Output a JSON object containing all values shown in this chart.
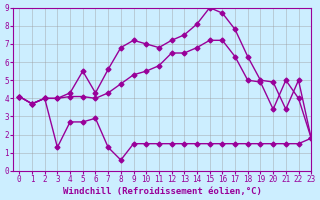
{
  "xlabel": "Windchill (Refroidissement éolien,°C)",
  "background_color": "#cceeff",
  "grid_color": "#999999",
  "line_color": "#990099",
  "xlim": [
    -0.5,
    23
  ],
  "ylim": [
    0,
    9
  ],
  "xticks": [
    0,
    1,
    2,
    3,
    4,
    5,
    6,
    7,
    8,
    9,
    10,
    11,
    12,
    13,
    14,
    15,
    16,
    17,
    18,
    19,
    20,
    21,
    22,
    23
  ],
  "yticks": [
    0,
    1,
    2,
    3,
    4,
    5,
    6,
    7,
    8,
    9
  ],
  "series": [
    {
      "x": [
        0,
        1,
        2,
        3,
        4,
        5,
        6,
        7,
        8,
        9,
        10,
        11,
        12,
        13,
        14,
        15,
        16,
        17,
        18,
        19,
        20,
        21,
        22,
        23
      ],
      "y": [
        4.1,
        3.7,
        4.0,
        4.0,
        4.3,
        5.5,
        4.3,
        5.6,
        6.8,
        7.2,
        7.0,
        6.8,
        7.2,
        7.5,
        8.1,
        9.0,
        8.7,
        7.8,
        6.3,
        5.0,
        4.9,
        3.4,
        5.0,
        1.8
      ]
    },
    {
      "x": [
        0,
        1,
        2,
        3,
        4,
        5,
        6,
        7,
        8,
        9,
        10,
        11,
        12,
        13,
        14,
        15,
        16,
        17,
        18,
        19,
        20,
        21,
        22,
        23
      ],
      "y": [
        4.1,
        3.7,
        4.0,
        4.0,
        4.1,
        4.1,
        4.0,
        4.3,
        4.8,
        5.3,
        5.5,
        5.8,
        6.5,
        6.5,
        6.8,
        7.2,
        7.2,
        6.3,
        5.0,
        4.9,
        3.4,
        5.0,
        4.0,
        1.8
      ]
    },
    {
      "x": [
        0,
        1,
        2,
        3,
        4,
        5,
        6,
        7,
        8,
        9,
        10,
        11,
        12,
        13,
        14,
        15,
        16,
        17,
        18,
        19,
        20,
        21,
        22,
        23
      ],
      "y": [
        4.1,
        3.7,
        4.0,
        1.3,
        2.7,
        2.7,
        2.9,
        1.3,
        0.6,
        1.5,
        1.5,
        1.5,
        1.5,
        1.5,
        1.5,
        1.5,
        1.5,
        1.5,
        1.5,
        1.5,
        1.5,
        1.5,
        1.5,
        1.8
      ]
    }
  ],
  "marker": "D",
  "markersize": 2.5,
  "linewidth": 1.0,
  "tick_fontsize": 5.5,
  "label_fontsize": 6.5,
  "tick_color": "#990099",
  "label_color": "#990099"
}
